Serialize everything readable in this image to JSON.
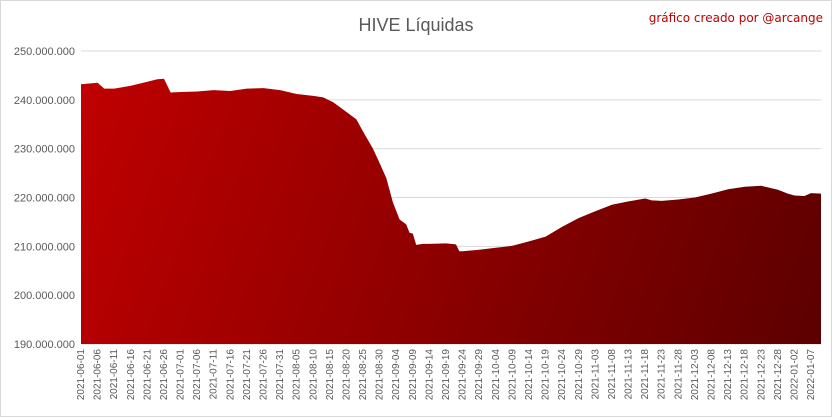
{
  "chart_data": {
    "type": "area",
    "title": "HIVE Líquidas",
    "credit": "gráfico creado por @arcange",
    "xlabel": "",
    "ylabel": "",
    "ylim": [
      190000000,
      250000000
    ],
    "y_ticks": [
      {
        "value": 190000000,
        "label": "190.000.000"
      },
      {
        "value": 200000000,
        "label": "200.000.000"
      },
      {
        "value": 210000000,
        "label": "210.000.000"
      },
      {
        "value": 220000000,
        "label": "220.000.000"
      },
      {
        "value": 230000000,
        "label": "230.000.000"
      },
      {
        "value": 240000000,
        "label": "240.000.000"
      },
      {
        "value": 250000000,
        "label": "250.000.000"
      }
    ],
    "x_tick_labels": [
      "2021-06-01",
      "2021-06-06",
      "2021-06-11",
      "2021-06-16",
      "2021-06-21",
      "2021-06-26",
      "2021-07-01",
      "2021-07-06",
      "2021-07-11",
      "2021-07-16",
      "2021-07-21",
      "2021-07-26",
      "2021-07-31",
      "2021-08-05",
      "2021-08-10",
      "2021-08-15",
      "2021-08-20",
      "2021-08-25",
      "2021-08-30",
      "2021-09-04",
      "2021-09-09",
      "2021-09-14",
      "2021-09-19",
      "2021-09-24",
      "2021-09-29",
      "2021-10-04",
      "2021-10-09",
      "2021-10-14",
      "2021-10-19",
      "2021-10-24",
      "2021-10-29",
      "2021-11-03",
      "2021-11-08",
      "2021-11-13",
      "2021-11-18",
      "2021-11-23",
      "2021-11-28",
      "2021-12-03",
      "2021-12-08",
      "2021-12-13",
      "2021-12-18",
      "2021-12-23",
      "2021-12-28",
      "2022-01-02",
      "2022-01-07"
    ],
    "grid": true,
    "legend": "none",
    "colors": {
      "fill_light": "#c00000",
      "fill_dark": "#5c0000",
      "grid": "#d9d9d9",
      "credit": "#c00000"
    },
    "series": [
      {
        "x": [
          "2021-06-01",
          "2021-06-06",
          "2021-06-08",
          "2021-06-11",
          "2021-06-16",
          "2021-06-21",
          "2021-06-24",
          "2021-06-26",
          "2021-06-28",
          "2021-07-01",
          "2021-07-06",
          "2021-07-11",
          "2021-07-16",
          "2021-07-21",
          "2021-07-26",
          "2021-07-31",
          "2021-08-05",
          "2021-08-10",
          "2021-08-13",
          "2021-08-16",
          "2021-08-20",
          "2021-08-23",
          "2021-08-25",
          "2021-08-28",
          "2021-08-30",
          "2021-09-01",
          "2021-09-03",
          "2021-09-05",
          "2021-09-07",
          "2021-09-08",
          "2021-09-09",
          "2021-09-10",
          "2021-09-12",
          "2021-09-14",
          "2021-09-19",
          "2021-09-22",
          "2021-09-23",
          "2021-09-24",
          "2021-09-29",
          "2021-10-04",
          "2021-10-09",
          "2021-10-14",
          "2021-10-19",
          "2021-10-24",
          "2021-10-29",
          "2021-11-03",
          "2021-11-08",
          "2021-11-13",
          "2021-11-18",
          "2021-11-20",
          "2021-11-23",
          "2021-11-28",
          "2021-12-03",
          "2021-12-08",
          "2021-12-13",
          "2021-12-18",
          "2021-12-23",
          "2021-12-28",
          "2021-12-31",
          "2022-01-02",
          "2022-01-05",
          "2022-01-07",
          "2022-01-10"
        ],
        "values": [
          243200000,
          243500000,
          242300000,
          242300000,
          242900000,
          243700000,
          244200000,
          244300000,
          241500000,
          241600000,
          241700000,
          242000000,
          241800000,
          242300000,
          242400000,
          242000000,
          241200000,
          240800000,
          240500000,
          239500000,
          237500000,
          236000000,
          233500000,
          230000000,
          227000000,
          224000000,
          219000000,
          215500000,
          214500000,
          212800000,
          212600000,
          210300000,
          210500000,
          210500000,
          210600000,
          210400000,
          209000000,
          209000000,
          209300000,
          209700000,
          210100000,
          211000000,
          212000000,
          214000000,
          215800000,
          217200000,
          218500000,
          219200000,
          219800000,
          219400000,
          219300000,
          219600000,
          220000000,
          220800000,
          221700000,
          222200000,
          222400000,
          221600000,
          220800000,
          220400000,
          220300000,
          220900000,
          220800000
        ]
      }
    ]
  }
}
